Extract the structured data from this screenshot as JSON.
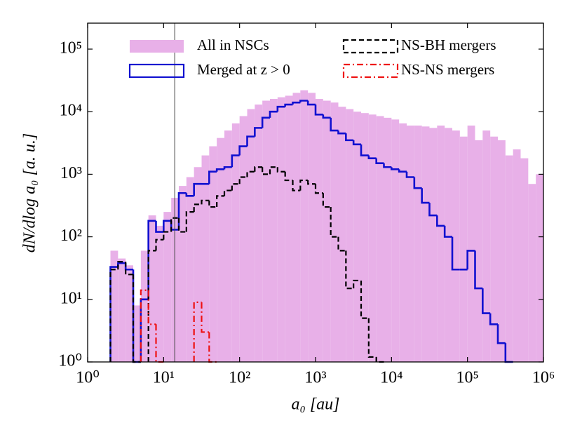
{
  "chart_data": {
    "type": "histogram",
    "xlabel": "a₀ [au]",
    "ylabel": "dN/dlog a₀ [a. u.]",
    "xscale": "log",
    "yscale": "log",
    "xlim": [
      1,
      1000000
    ],
    "ylim": [
      1,
      260000
    ],
    "xticks": [
      {
        "value": 1,
        "label": "10⁰"
      },
      {
        "value": 10,
        "label": "10¹"
      },
      {
        "value": 100,
        "label": "10²"
      },
      {
        "value": 1000,
        "label": "10³"
      },
      {
        "value": 10000,
        "label": "10⁴"
      },
      {
        "value": 100000,
        "label": "10⁵"
      },
      {
        "value": 1000000,
        "label": "10⁶"
      }
    ],
    "yticks": [
      {
        "value": 1,
        "label": "10⁰"
      },
      {
        "value": 10,
        "label": "10¹"
      },
      {
        "value": 100,
        "label": "10²"
      },
      {
        "value": 1000,
        "label": "10³"
      },
      {
        "value": 10000,
        "label": "10⁴"
      },
      {
        "value": 100000,
        "label": "10⁵"
      }
    ],
    "vline_x": 14,
    "bins": [
      1.995,
      2.512,
      3.162,
      3.981,
      5.012,
      6.31,
      7.943,
      10,
      12.59,
      15.85,
      19.95,
      25.12,
      31.62,
      39.81,
      50.12,
      63.1,
      79.43,
      100,
      125.9,
      158.5,
      199.5,
      251.2,
      316.2,
      398.1,
      501.2,
      631,
      794.3,
      1000,
      1259,
      1585,
      1995,
      2512,
      3162,
      3981,
      5012,
      6310,
      7943,
      10000,
      12590,
      15850,
      19950,
      25120,
      31620,
      39810,
      50120,
      63100,
      79430,
      100000,
      125900,
      158500,
      199500,
      251200,
      316200,
      398100,
      501200,
      631000,
      794300,
      1000000
    ],
    "series": [
      {
        "name": "All in NSCs",
        "color": "#e8b0e8",
        "histtype": "stepfilled",
        "linestyle": "solid",
        "values": [
          60,
          45,
          35,
          8,
          60,
          220,
          150,
          250,
          420,
          650,
          900,
          1300,
          2000,
          2800,
          3800,
          5000,
          6500,
          8500,
          11000,
          13000,
          15000,
          16000,
          17000,
          18000,
          20000,
          22000,
          20000,
          16000,
          15000,
          14000,
          12000,
          11000,
          10000,
          9500,
          9000,
          8500,
          8000,
          7500,
          6500,
          6000,
          6000,
          5800,
          5500,
          6000,
          5500,
          5000,
          4000,
          6000,
          3500,
          5000,
          4000,
          3500,
          2000,
          2500,
          1800,
          700,
          1000
        ]
      },
      {
        "name": "Merged at z > 0",
        "color": "#1010d0",
        "histtype": "step",
        "linestyle": "solid",
        "values": [
          33,
          38,
          30,
          0,
          10,
          180,
          120,
          180,
          130,
          500,
          450,
          700,
          700,
          1100,
          1200,
          1300,
          2000,
          2800,
          4000,
          5500,
          8000,
          10000,
          12000,
          13000,
          14000,
          15000,
          13000,
          9000,
          8000,
          5000,
          4500,
          3500,
          3000,
          2000,
          1800,
          1500,
          1300,
          1200,
          1100,
          900,
          600,
          350,
          220,
          150,
          100,
          30,
          30,
          60,
          15,
          6,
          4,
          2,
          1,
          0,
          0,
          0,
          0
        ]
      },
      {
        "name": "NS-BH mergers",
        "color": "#000000",
        "histtype": "step",
        "linestyle": "dashed",
        "values": [
          30,
          40,
          25,
          0,
          0,
          60,
          90,
          120,
          200,
          120,
          250,
          330,
          380,
          300,
          450,
          550,
          700,
          900,
          1100,
          1300,
          1000,
          1300,
          1100,
          800,
          550,
          800,
          700,
          500,
          300,
          100,
          60,
          15,
          20,
          5,
          1.2,
          0,
          0,
          0,
          0,
          0,
          0,
          0,
          0,
          0,
          0,
          0,
          0,
          0,
          0,
          0,
          0,
          0,
          0,
          0,
          0,
          0,
          0
        ]
      },
      {
        "name": "NS-NS mergers",
        "color": "#ee1111",
        "histtype": "step",
        "linestyle": "dashdot",
        "values": [
          0,
          0,
          0,
          0,
          14,
          4,
          0,
          0,
          0,
          0,
          0,
          9,
          3,
          0,
          0,
          0,
          0,
          0,
          0,
          0,
          0,
          0,
          0,
          0,
          0,
          0,
          0,
          0,
          0,
          0,
          0,
          0,
          0,
          0,
          0,
          0,
          0,
          0,
          0,
          0,
          0,
          0,
          0,
          0,
          0,
          0,
          0,
          0,
          0,
          0,
          0,
          0,
          0,
          0,
          0,
          0,
          0
        ]
      }
    ]
  }
}
